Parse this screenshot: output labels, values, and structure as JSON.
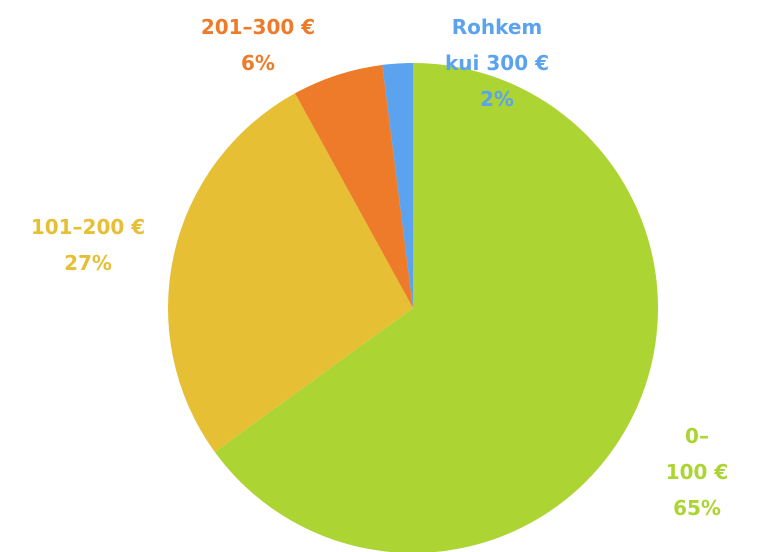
{
  "chart_data": {
    "type": "pie",
    "categories": [
      "0–100 €",
      "101–200 €",
      "201–300 €",
      "Rohkem kui 300 €"
    ],
    "values": [
      65,
      27,
      6,
      2
    ],
    "value_labels": [
      "65%",
      "27%",
      "6%",
      "2%"
    ],
    "colors": [
      "#acd433",
      "#e6bf35",
      "#ee7b2a",
      "#5ba3ef"
    ]
  }
}
